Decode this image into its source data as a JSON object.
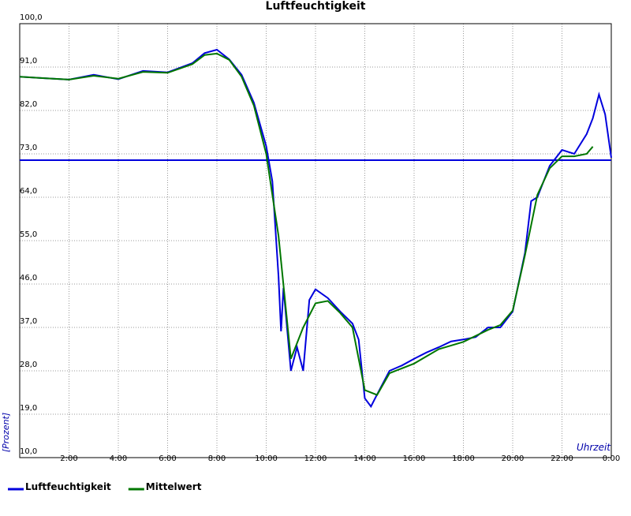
{
  "chart_data": {
    "type": "line",
    "title": "Luftfeuchtigkeit",
    "y_label": "[Prozent]",
    "x_label": "Uhrzeit",
    "xlim": [
      0,
      24
    ],
    "xticks": [
      {
        "value": 2,
        "label": "2:00"
      },
      {
        "value": 4,
        "label": "4:00"
      },
      {
        "value": 6,
        "label": "6:00"
      },
      {
        "value": 8,
        "label": "8:00"
      },
      {
        "value": 10,
        "label": "10:00"
      },
      {
        "value": 12,
        "label": "12:00"
      },
      {
        "value": 14,
        "label": "14:00"
      },
      {
        "value": 16,
        "label": "16:00"
      },
      {
        "value": 18,
        "label": "18:00"
      },
      {
        "value": 20,
        "label": "20:00"
      },
      {
        "value": 22,
        "label": "22:00"
      },
      {
        "value": 24,
        "label": "0:00"
      }
    ],
    "ylim": [
      10,
      100
    ],
    "yticks": [
      {
        "value": 10,
        "label": "10,0"
      },
      {
        "value": 19,
        "label": "19,0"
      },
      {
        "value": 28,
        "label": "28,0"
      },
      {
        "value": 37,
        "label": "37,0"
      },
      {
        "value": 46,
        "label": "46,0"
      },
      {
        "value": 55,
        "label": "55,0"
      },
      {
        "value": 64,
        "label": "64,0"
      },
      {
        "value": 73,
        "label": "73,0"
      },
      {
        "value": 82,
        "label": "82,0"
      },
      {
        "value": 91,
        "label": "91,0"
      },
      {
        "value": 100,
        "label": "100,0"
      }
    ],
    "grid": true,
    "hline": {
      "value": 71.7,
      "color": "#0000dd"
    },
    "series": [
      {
        "name": "Luftfeuchtigkeit",
        "color": "#0000dd",
        "x": [
          0,
          1,
          2,
          3,
          4,
          5,
          6,
          7,
          7.5,
          8,
          8.5,
          9,
          9.5,
          10,
          10.25,
          10.5,
          10.6,
          10.7,
          11,
          11.25,
          11.5,
          11.75,
          12,
          12.5,
          13,
          13.5,
          13.75,
          14,
          14.25,
          14.5,
          15,
          15.5,
          16,
          16.5,
          17,
          17.5,
          18,
          18.5,
          19,
          19.5,
          20,
          20.5,
          20.75,
          21,
          21.5,
          22,
          22.5,
          23,
          23.25,
          23.5,
          23.75,
          24
        ],
        "values": [
          89.0,
          88.7,
          88.4,
          89.4,
          88.5,
          90.2,
          89.9,
          91.8,
          93.9,
          94.6,
          92.6,
          89.4,
          83.6,
          74.6,
          67.3,
          47.6,
          36.2,
          45.2,
          28.0,
          32.9,
          28.0,
          42.7,
          44.9,
          43.1,
          40.3,
          37.8,
          34.5,
          22.3,
          20.6,
          23.1,
          28.0,
          29.1,
          30.5,
          31.8,
          32.9,
          34.1,
          34.5,
          35.0,
          37.0,
          37.0,
          40.3,
          52.5,
          63.2,
          64.0,
          70.5,
          73.8,
          73.0,
          77.1,
          80.4,
          85.3,
          81.2,
          72.2
        ]
      },
      {
        "name": "Mittelwert",
        "color": "#007700",
        "x": [
          0,
          1,
          2,
          3,
          4,
          5,
          6,
          7,
          7.5,
          8,
          8.5,
          9,
          9.5,
          10,
          10.5,
          11,
          11.5,
          12,
          12.5,
          13,
          13.5,
          14,
          14.5,
          15,
          16,
          17,
          18,
          19,
          19.5,
          20,
          20.5,
          21,
          21.5,
          22,
          22.5,
          23,
          23.25
        ],
        "values": [
          89.0,
          88.7,
          88.4,
          89.2,
          88.6,
          90.0,
          89.8,
          91.6,
          93.5,
          93.8,
          92.5,
          89.0,
          83.0,
          73.0,
          56.0,
          30.5,
          37.0,
          42.0,
          42.5,
          40.0,
          37.0,
          24.0,
          23.0,
          27.5,
          29.5,
          32.5,
          34.0,
          36.5,
          37.5,
          40.5,
          52.0,
          64.5,
          70.0,
          72.5,
          72.5,
          73.0,
          74.5
        ]
      }
    ]
  }
}
